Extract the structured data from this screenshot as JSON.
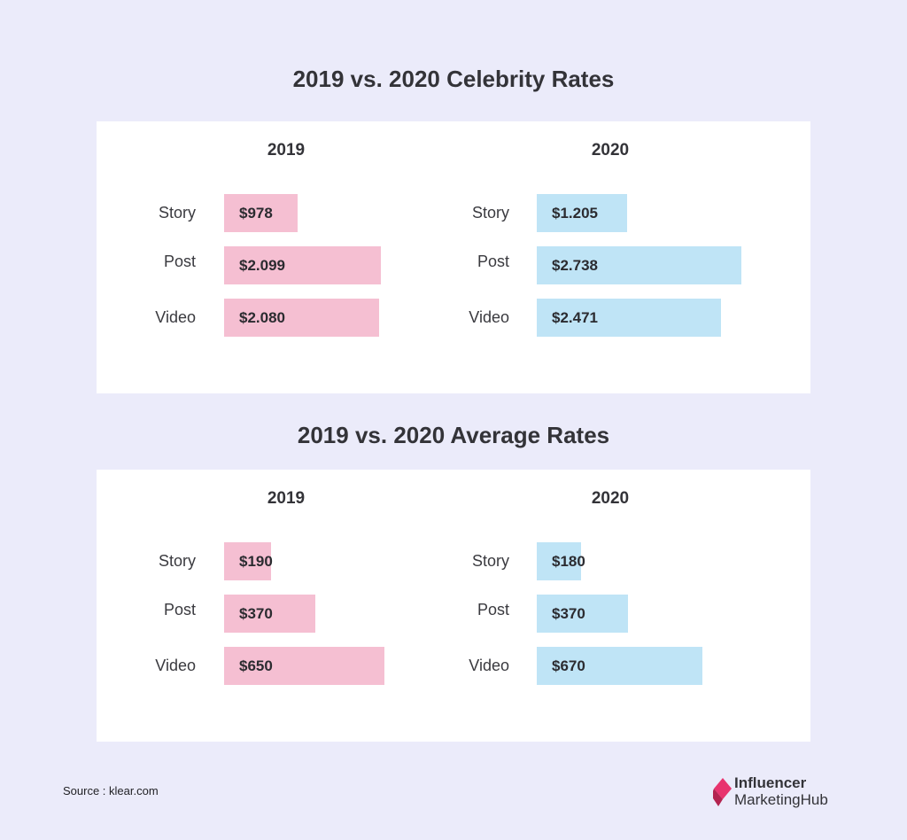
{
  "chart_data": [
    {
      "type": "bar",
      "title": "2019 vs. 2020 Celebrity Rates",
      "categories": [
        "Story",
        "Post",
        "Video"
      ],
      "series": [
        {
          "name": "2019",
          "values": [
            978,
            2099,
            2080
          ],
          "labels": [
            "$978",
            "$2.099",
            "$2.080"
          ]
        },
        {
          "name": "2020",
          "values": [
            1205,
            2738,
            2471
          ],
          "labels": [
            "$1.205",
            "$2.738",
            "$2.471"
          ]
        }
      ]
    },
    {
      "type": "bar",
      "title": "2019 vs. 2020 Average Rates",
      "categories": [
        "Story",
        "Post",
        "Video"
      ],
      "series": [
        {
          "name": "2019",
          "values": [
            190,
            370,
            650
          ],
          "labels": [
            "$190",
            "$370",
            "$650"
          ]
        },
        {
          "name": "2020",
          "values": [
            180,
            370,
            670
          ],
          "labels": [
            "$180",
            "$370",
            "$670"
          ]
        }
      ]
    }
  ],
  "colors": {
    "background": "#ebebfa",
    "bar_2019": "#f5bfd2",
    "bar_2020": "#bfe4f6",
    "logo_accent": "#e8336e"
  },
  "footer": {
    "source": "Source : klear.com",
    "logo_line1": "Influencer",
    "logo_line2": "MarketingHub",
    "logo_icon": "influencer-marketing-hub-logo-icon"
  }
}
